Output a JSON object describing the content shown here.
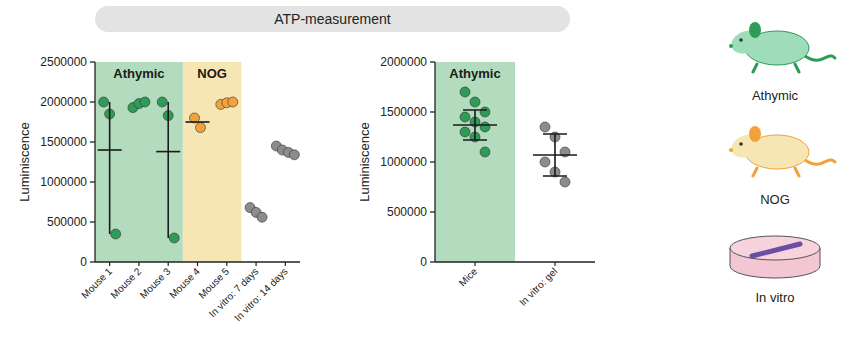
{
  "title": "ATP-measurement",
  "chart_data": [
    {
      "type": "scatter",
      "y_label": "Luminiscence",
      "categories": [
        "Mouse 1",
        "Mouse 2",
        "Mouse 3",
        "Mouse 4",
        "Mouse 5",
        "In vitro: 7 days",
        "In vitro: 14 days"
      ],
      "points": [
        [
          2000000,
          1850000,
          350000
        ],
        [
          1930000,
          1980000,
          2000000
        ],
        [
          2000000,
          1830000,
          300000
        ],
        [
          1800000,
          1680000
        ],
        [
          1970000,
          1990000,
          2000000
        ],
        [
          680000,
          620000,
          560000
        ],
        [
          1450000,
          1400000,
          1370000,
          1340000
        ]
      ],
      "means": [
        1400000,
        null,
        1380000,
        1750000,
        null,
        null,
        null
      ],
      "ranges": [
        [
          350000,
          2000000
        ],
        null,
        [
          300000,
          2000000
        ],
        null,
        null,
        null,
        null
      ],
      "colors": [
        "#2e9b57",
        "#2e9b57",
        "#2e9b57",
        "#f2a23a",
        "#f2a23a",
        "#8c8c8c",
        "#8c8c8c"
      ],
      "regions": [
        {
          "label": "Athymic",
          "categories": [
            "Mouse 1",
            "Mouse 2",
            "Mouse 3"
          ],
          "color": "#b3dcbf"
        },
        {
          "label": "NOG",
          "categories": [
            "Mouse 4",
            "Mouse 5"
          ],
          "color": "#f6e6b3"
        }
      ],
      "ylim": [
        0,
        2500000
      ],
      "yticks": [
        0,
        500000,
        1000000,
        1500000,
        2000000,
        2500000
      ]
    },
    {
      "type": "scatter",
      "y_label": "Luminiscence",
      "categories": [
        "Mice",
        "In vitro: gel"
      ],
      "points": [
        [
          1700000,
          1600000,
          1500000,
          1450000,
          1400000,
          1350000,
          1300000,
          1250000,
          1100000
        ],
        [
          1350000,
          1250000,
          1100000,
          1000000,
          900000,
          800000
        ]
      ],
      "means": [
        1370000,
        1070000
      ],
      "ranges": [
        [
          1220000,
          1520000
        ],
        [
          860000,
          1280000
        ]
      ],
      "colors": [
        "#2e9b57",
        "#8c8c8c"
      ],
      "regions": [
        {
          "label": "Athymic",
          "categories": [
            "Mice"
          ],
          "color": "#b3dcbf"
        }
      ],
      "ylim": [
        0,
        2000000
      ],
      "yticks": [
        0,
        500000,
        1000000,
        1500000,
        2000000
      ]
    }
  ],
  "icons": [
    {
      "label": "Athymic"
    },
    {
      "label": "NOG"
    },
    {
      "label": "In vitro"
    }
  ]
}
